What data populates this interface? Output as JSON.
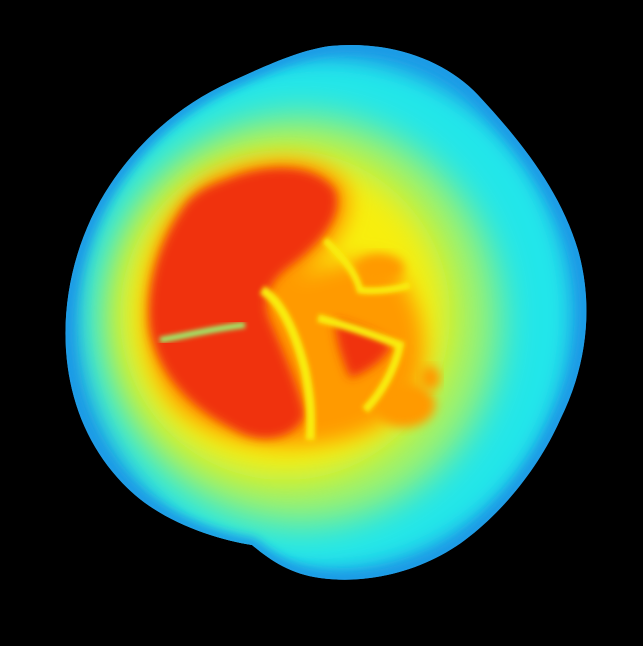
{
  "image": {
    "kind": "false-color thermal-style scan of a rounded organic mass",
    "colormap": "jet",
    "background_color": "#000000",
    "palette": {
      "rim": "#1e9be6",
      "outer": "#20e6ea",
      "mid": "#9bf26e",
      "warm": "#f8ee10",
      "hot": "#ff9a00",
      "core": "#f0320a"
    }
  }
}
